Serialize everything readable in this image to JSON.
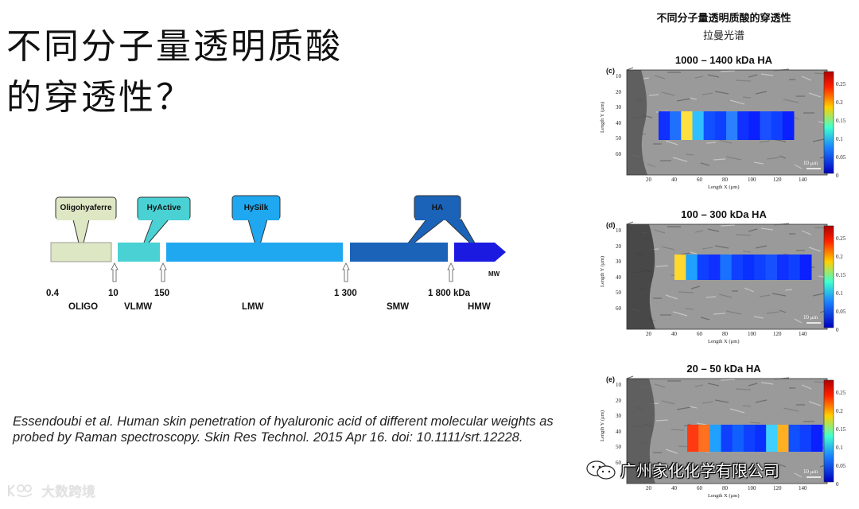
{
  "slide": {
    "title_line1": "不同分子量透明质酸",
    "title_line2": "的穿透性？",
    "citation": "Essendoubi et al. Human skin penetration of hyaluronic acid of different molecular weights as probed by Raman spectroscopy. Skin Res Technol. 2015 Apr 16. doi: 10.1111/srt.12228.",
    "bottom_logo": "大数跨境"
  },
  "timeline": {
    "products": [
      {
        "label": "Oligohyaferre",
        "color": "#dde7c4"
      },
      {
        "label": "HyActive",
        "color": "#49d1d4"
      },
      {
        "label": "HySilk",
        "color": "#1fa7f0"
      },
      {
        "label": "HA",
        "color": "#1a63b8"
      }
    ],
    "ticks": [
      "0.4",
      "10",
      "150",
      "1 300",
      "1 800 kDa"
    ],
    "classes": [
      "OLIGO",
      "VLMW",
      "LMW",
      "SMW",
      "HMW"
    ],
    "axis_label": "MW",
    "segment_colors": [
      "#dde7c4",
      "#49d1d4",
      "#1fa7f0",
      "#1a63b8",
      "#1a1ae0"
    ]
  },
  "right": {
    "title": "不同分子量透明质酸的穿透性",
    "subtitle": "拉曼光谱",
    "panels": [
      {
        "letter": "(c)",
        "title": "1000 – 1400 kDa HA",
        "scalebar": "10 µm"
      },
      {
        "letter": "(d)",
        "title": "100 – 300 kDa HA",
        "scalebar": "10 µm"
      },
      {
        "letter": "(e)",
        "title": "20 – 50 kDa HA",
        "scalebar": "10 µm"
      }
    ],
    "x_axis_label": "Length X (µm)",
    "y_axis_label": "Length Y (µm)",
    "x_ticks": [
      "20",
      "40",
      "60",
      "80",
      "100",
      "120",
      "140"
    ],
    "y_ticks": [
      "10",
      "20",
      "30",
      "40",
      "50",
      "60"
    ],
    "colorbar_ticks": [
      "0.25",
      "0.2",
      "0.15",
      "0.1",
      "0.05",
      "0"
    ],
    "watermark": "广州家化化学有限公司"
  }
}
